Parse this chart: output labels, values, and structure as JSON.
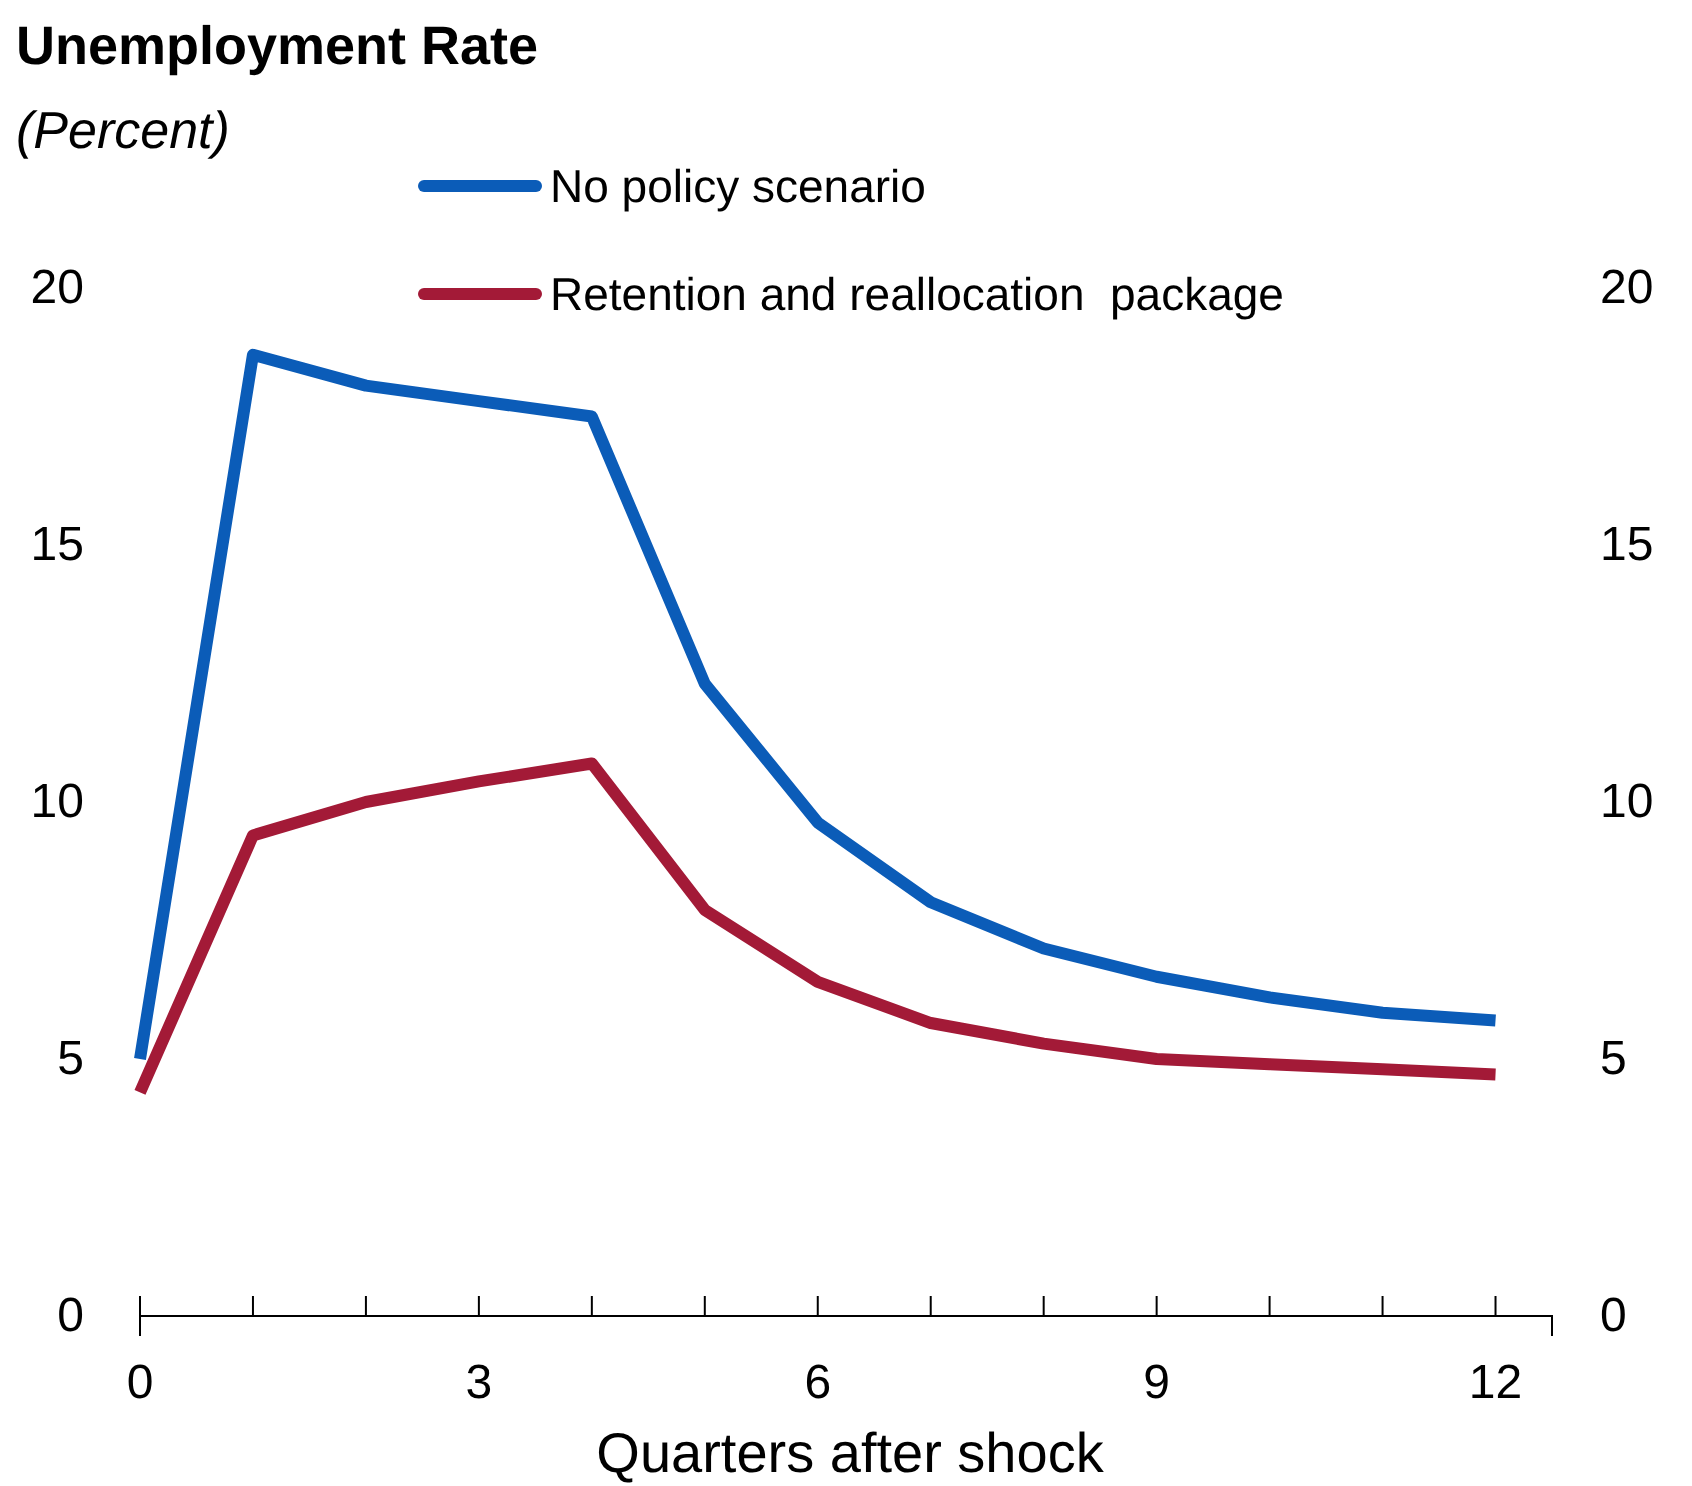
{
  "chart_data": {
    "type": "line",
    "title": "Unemployment Rate",
    "subtitle": "(Percent)",
    "xlabel": "Quarters after shock",
    "x": [
      0,
      1,
      2,
      3,
      4,
      5,
      6,
      7,
      8,
      9,
      10,
      11,
      12
    ],
    "series": [
      {
        "name": "No policy scenario",
        "color": "#0b5cb8",
        "values": [
          5.0,
          18.7,
          18.1,
          17.8,
          17.5,
          12.3,
          9.6,
          8.05,
          7.15,
          6.6,
          6.2,
          5.9,
          5.75
        ]
      },
      {
        "name": "Retention and reallocation  package",
        "color": "#a31a37",
        "values": [
          4.35,
          9.35,
          10.0,
          10.4,
          10.75,
          7.9,
          6.5,
          5.7,
          5.3,
          5.0,
          4.9,
          4.8,
          4.7
        ]
      }
    ],
    "xlim": [
      0,
      12.5
    ],
    "xticks": [
      0,
      {
        "value": 1,
        "label": null
      },
      {
        "value": 2,
        "label": null
      },
      3,
      {
        "value": 4,
        "label": null
      },
      {
        "value": 5,
        "label": null
      },
      6,
      {
        "value": 7,
        "label": null
      },
      {
        "value": 8,
        "label": null
      },
      9,
      {
        "value": 10,
        "label": null
      },
      {
        "value": 11,
        "label": null
      },
      12
    ],
    "ylim": [
      0,
      20
    ],
    "yticks": [
      0,
      5,
      10,
      15,
      20
    ],
    "y2lim": [
      0,
      20
    ],
    "y2ticks": [
      0,
      5,
      10,
      15,
      20
    ],
    "grid": false,
    "legend": "top",
    "marker": "none",
    "line_style": "solid"
  }
}
